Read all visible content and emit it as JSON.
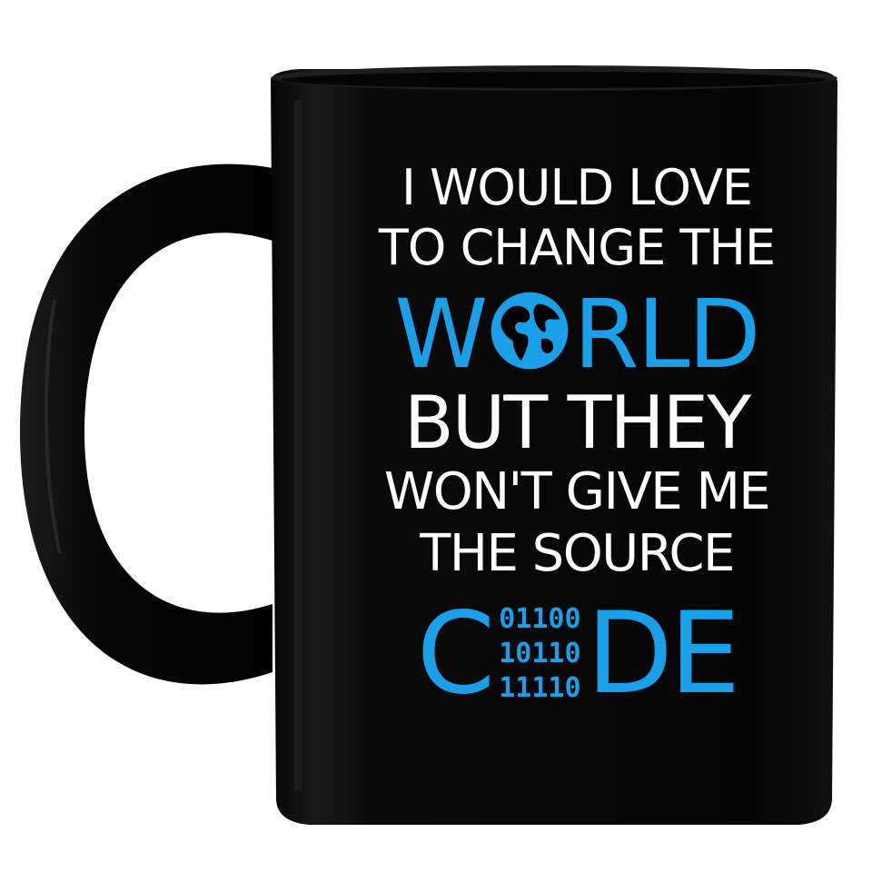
{
  "product": {
    "type": "mug",
    "body_color": "#000000",
    "background_color": "#ffffff"
  },
  "print": {
    "line1": "I WOULD LOVE",
    "line2": "TO CHANGE THE",
    "world_pre": "W",
    "world_post": "RLD",
    "line4": "BUT THEY",
    "line5": "WON'T GIVE ME",
    "line6": "THE SOURCE",
    "code_pre": "C",
    "code_post": "DE",
    "binary": [
      "01100",
      "10110",
      "11110"
    ],
    "text_color": "#ffffff",
    "accent_color": "#1aa0e8",
    "globe_icon": "globe-icon"
  }
}
